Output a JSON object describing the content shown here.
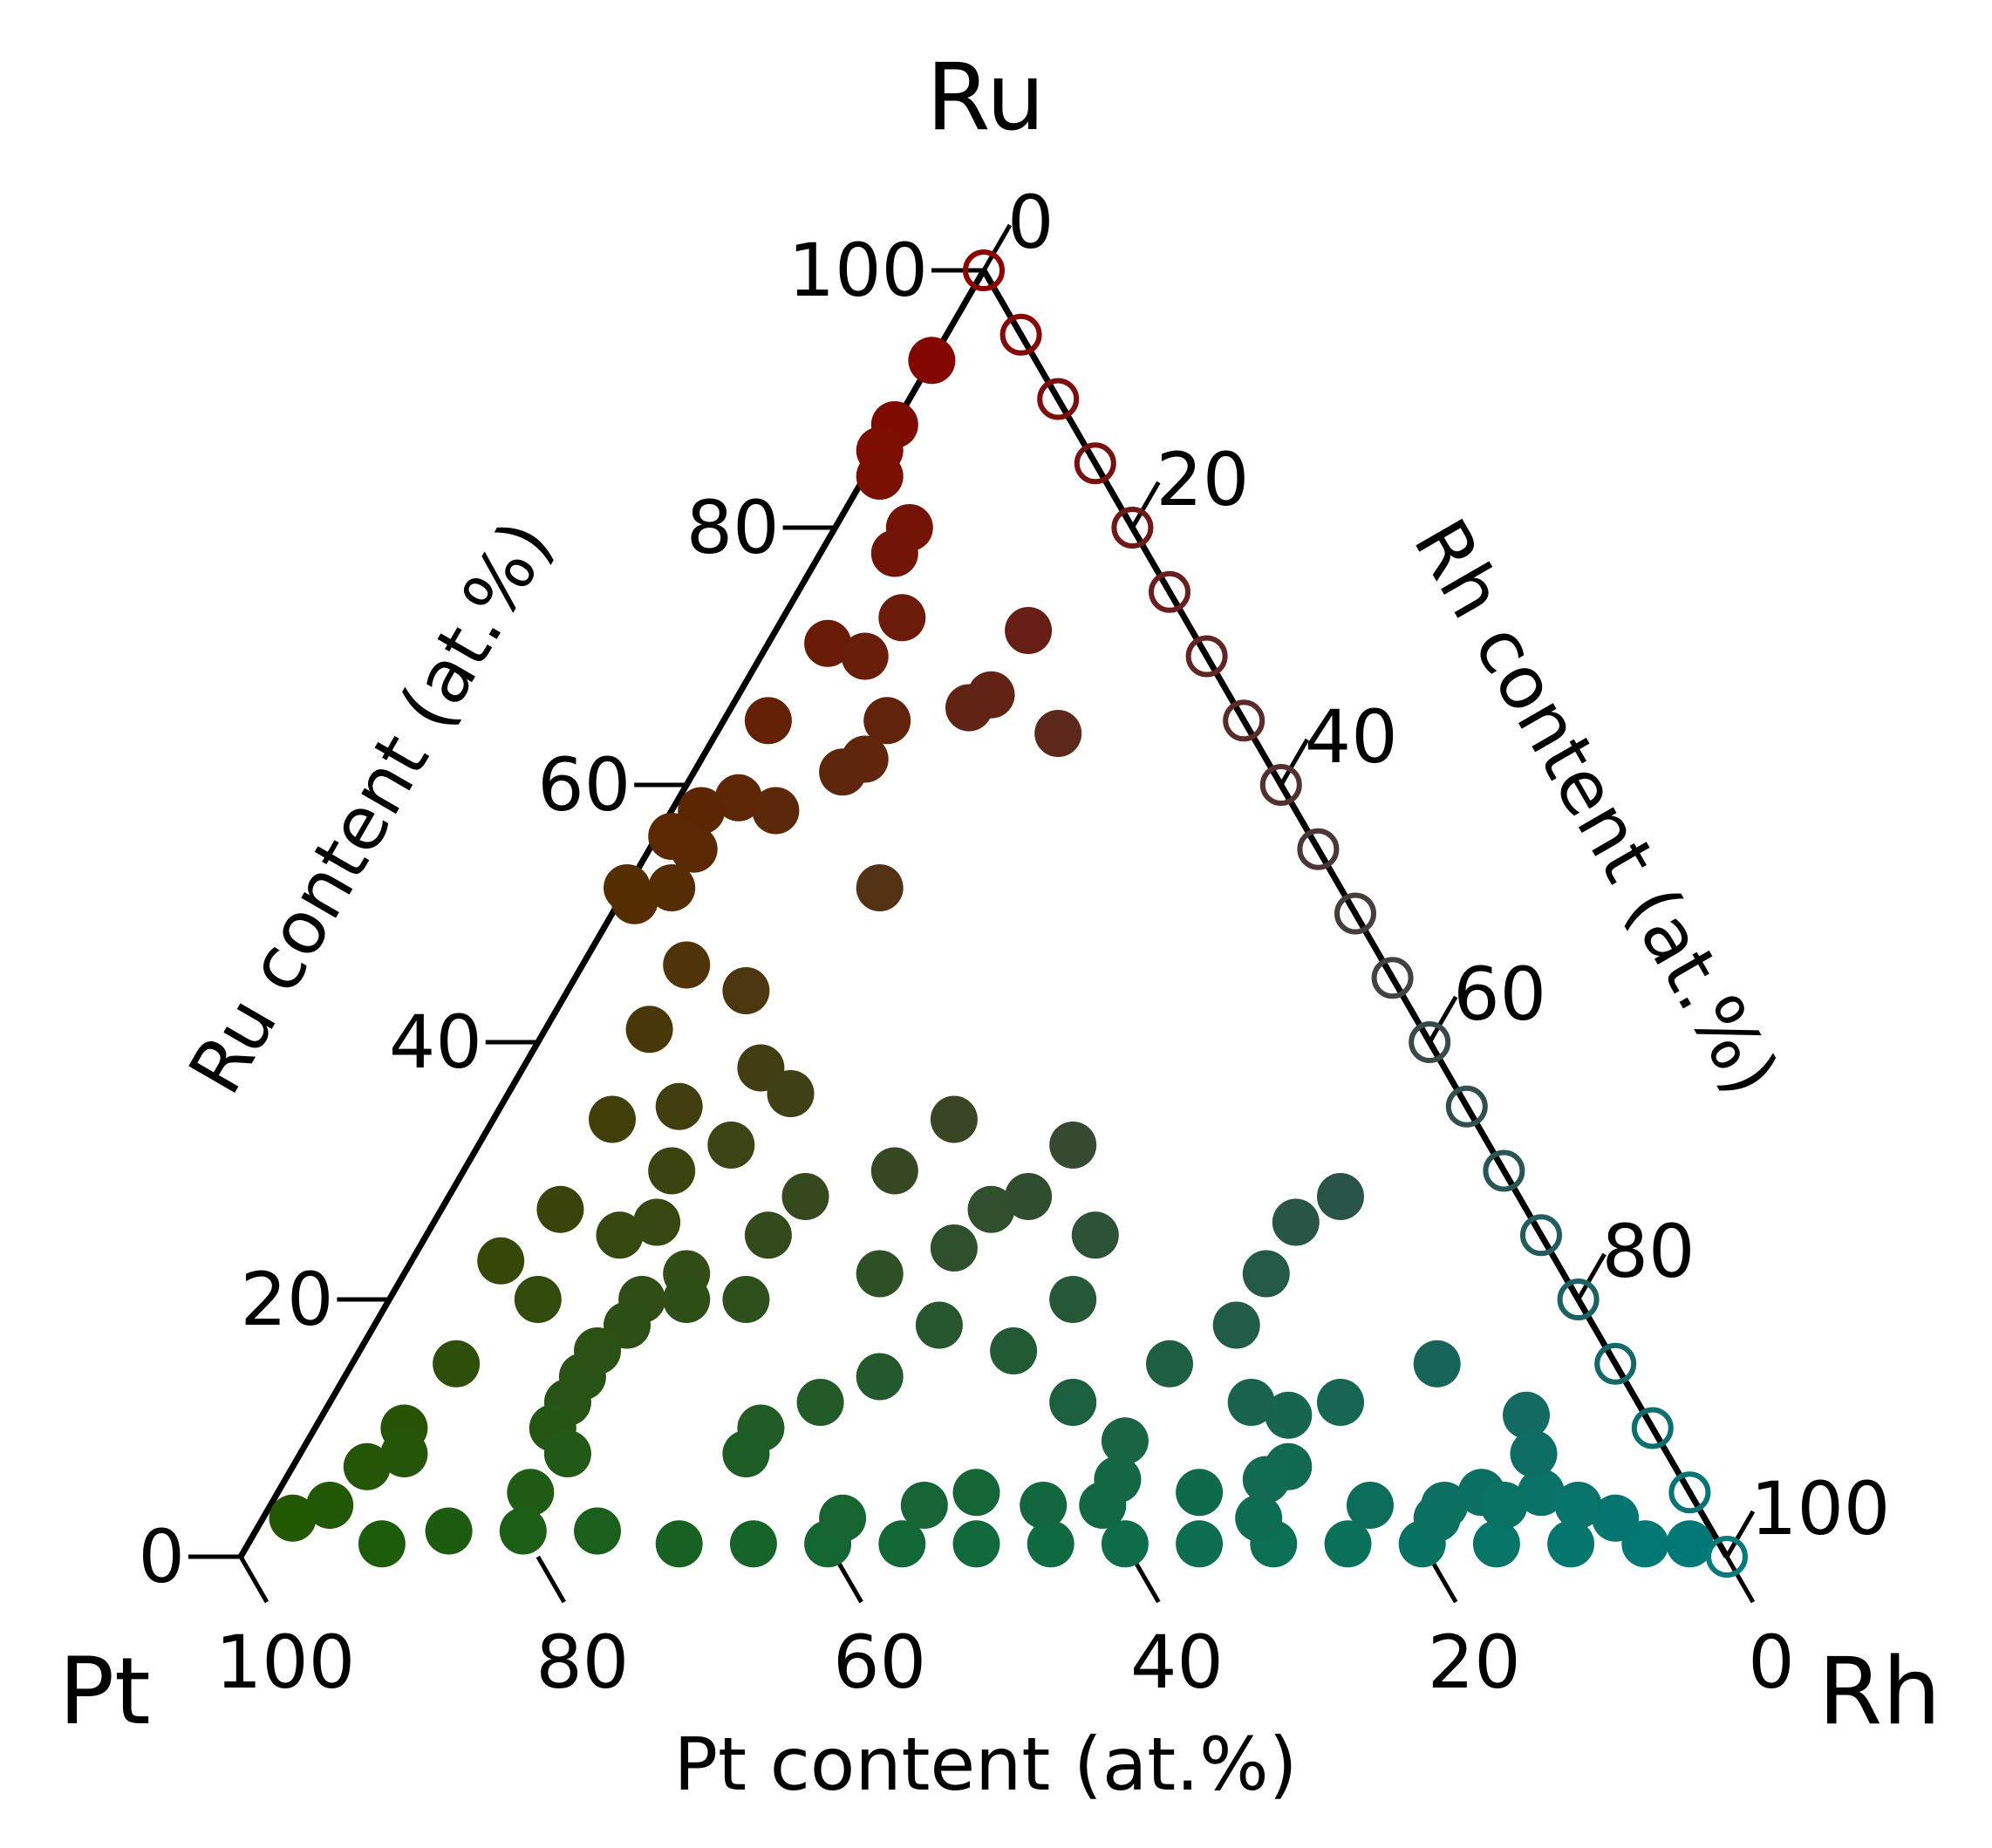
{
  "chart_data": {
    "type": "scatter",
    "subtype": "ternary",
    "vertices": {
      "top": "Ru",
      "left": "Pt",
      "right": "Rh"
    },
    "axes": {
      "ru": {
        "label": "Ru content (at.%)",
        "ticks": [
          0,
          20,
          40,
          60,
          80,
          100
        ]
      },
      "rh": {
        "label": "Rh content (at.%)",
        "ticks": [
          0,
          20,
          40,
          60,
          80,
          100
        ]
      },
      "pt": {
        "label": "Pt content (at.%)",
        "ticks": [
          100,
          80,
          60,
          40,
          20,
          0
        ]
      }
    },
    "colors": {
      "ru": "#8b0000",
      "pt": "#1f5a00",
      "rh": "#007a7a"
    },
    "series": [
      {
        "marker": "filled",
        "points_pt_ru": [
          [
            7,
            93
          ],
          [
            12,
            88
          ],
          [
            14,
            86
          ],
          [
            15,
            84
          ],
          [
            15,
            80
          ],
          [
            17,
            78
          ],
          [
            19,
            73
          ],
          [
            25,
            71
          ],
          [
            11,
            72
          ],
          [
            23,
            70
          ],
          [
            16,
            67
          ],
          [
            24,
            65
          ],
          [
            18,
            66
          ],
          [
            13,
            64
          ],
          [
            32,
            65
          ],
          [
            37,
            59
          ],
          [
            40,
            58
          ],
          [
            42,
            55
          ],
          [
            43,
            56
          ],
          [
            45,
            52
          ],
          [
            48,
            51
          ],
          [
            54,
            52
          ],
          [
            47,
            46
          ],
          [
            44,
            44
          ],
          [
            31,
            52
          ],
          [
            27,
            62
          ],
          [
            29,
            61
          ],
          [
            35,
            58
          ],
          [
            52,
            41
          ],
          [
            46,
            38
          ],
          [
            51,
            32
          ],
          [
            58,
            34
          ],
          [
            45,
            36
          ],
          [
            59,
            26
          ],
          [
            62,
            25
          ],
          [
            59,
            22
          ],
          [
            60,
            20
          ],
          [
            63,
            20
          ],
          [
            56,
            30
          ],
          [
            53,
            35
          ],
          [
            65,
            18
          ],
          [
            70,
            14
          ],
          [
            72,
            12
          ],
          [
            74,
            10
          ],
          [
            74,
            8
          ],
          [
            78,
            5
          ],
          [
            68,
            16
          ],
          [
            65,
            27
          ],
          [
            70,
            20
          ],
          [
            71,
            23
          ],
          [
            78,
            15
          ],
          [
            84,
            10
          ],
          [
            85,
            8
          ],
          [
            88,
            7
          ],
          [
            92,
            4
          ],
          [
            95,
            3
          ],
          [
            90,
            1
          ],
          [
            85,
            2
          ],
          [
            80,
            2
          ],
          [
            75,
            2
          ],
          [
            70,
            1
          ],
          [
            65,
            1
          ],
          [
            60,
            1
          ],
          [
            55,
            1
          ],
          [
            50,
            1
          ],
          [
            45,
            1
          ],
          [
            40,
            1
          ],
          [
            35,
            1
          ],
          [
            30,
            1
          ],
          [
            25,
            1
          ],
          [
            20,
            1
          ],
          [
            15,
            1
          ],
          [
            10,
            1
          ],
          [
            5,
            1
          ],
          [
            2,
            1
          ],
          [
            58,
            3
          ],
          [
            52,
            4
          ],
          [
            48,
            5
          ],
          [
            44,
            4
          ],
          [
            38,
            6
          ],
          [
            33,
            5
          ],
          [
            30,
            3
          ],
          [
            26,
            7
          ],
          [
            22,
            4
          ],
          [
            18,
            3
          ],
          [
            14,
            5
          ],
          [
            10,
            5
          ],
          [
            6,
            3
          ],
          [
            40,
            4
          ],
          [
            36,
            9
          ],
          [
            20,
            12
          ],
          [
            24,
            11
          ],
          [
            12,
            15
          ],
          [
            8,
            11
          ],
          [
            60,
            10
          ],
          [
            62,
            8
          ],
          [
            55,
            12
          ],
          [
            50,
            14
          ],
          [
            44,
            18
          ],
          [
            40,
            16
          ],
          [
            56,
            20
          ],
          [
            52,
            25
          ],
          [
            46,
            22
          ],
          [
            40,
            24
          ],
          [
            36,
            27
          ],
          [
            33,
            28
          ],
          [
            30,
            25
          ],
          [
            28,
            32
          ],
          [
            35,
            34
          ],
          [
            41,
            30
          ],
          [
            48,
            28
          ],
          [
            38,
            12
          ],
          [
            34,
            20
          ],
          [
            30,
            15
          ],
          [
            28,
            6
          ],
          [
            26,
            12
          ],
          [
            24,
            18
          ],
          [
            20,
            22
          ],
          [
            16,
            26
          ],
          [
            12,
            28
          ],
          [
            9,
            8
          ],
          [
            17,
            4
          ],
          [
            13,
            4
          ],
          [
            8,
            4
          ]
        ]
      },
      {
        "marker": "open",
        "ru_values": [
          100,
          95,
          90,
          85,
          80,
          75,
          70,
          65,
          60,
          55,
          50,
          45,
          40,
          35,
          30,
          25,
          20,
          15,
          10,
          5,
          0
        ]
      }
    ]
  }
}
